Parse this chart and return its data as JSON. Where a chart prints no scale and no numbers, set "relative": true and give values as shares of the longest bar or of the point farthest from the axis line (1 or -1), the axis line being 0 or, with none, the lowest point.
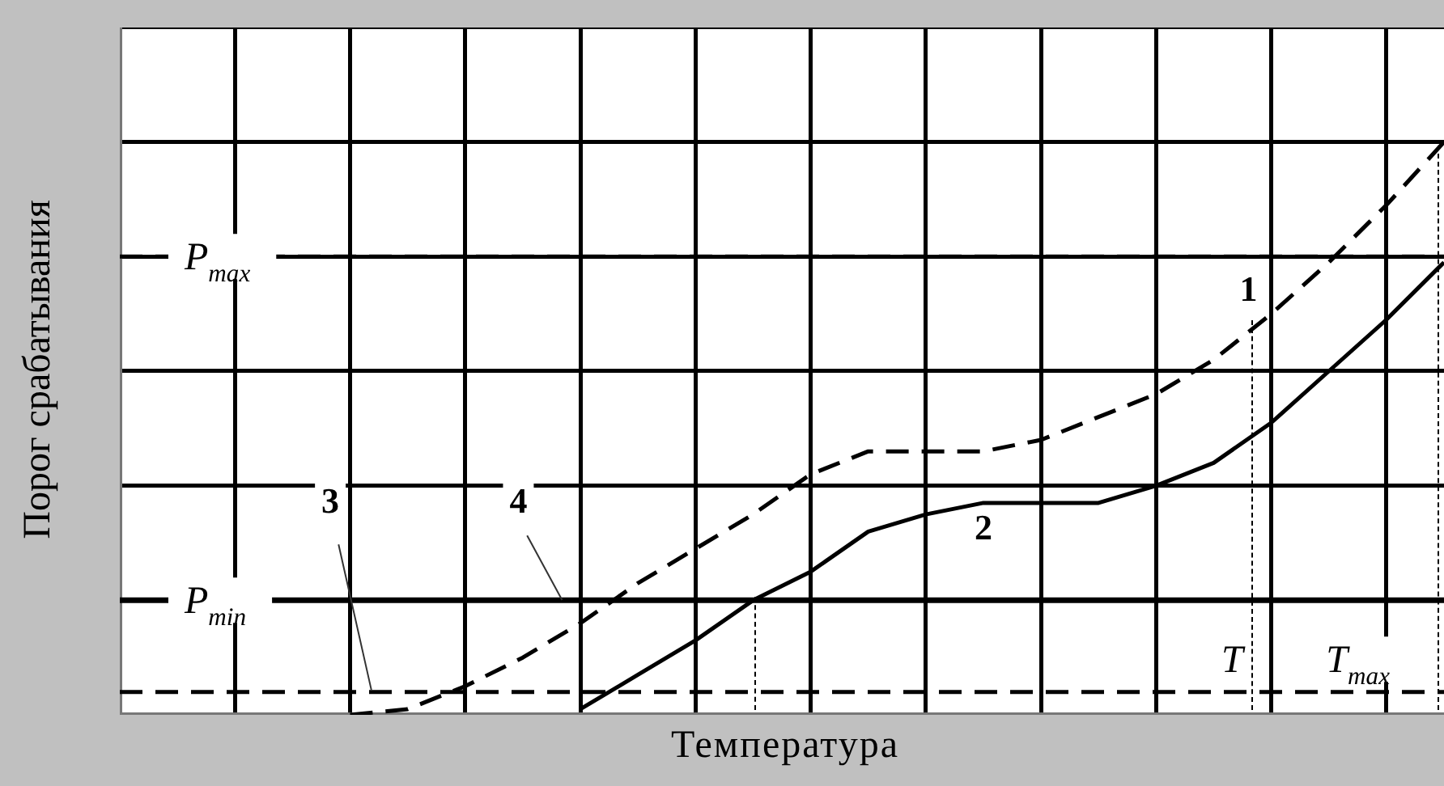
{
  "chart_data": {
    "type": "line",
    "relative": true,
    "xlabel": "Температура",
    "ylabel": "Порог срабатывания",
    "categories": [
      null,
      null,
      null,
      null,
      null,
      null,
      null,
      null,
      null,
      null,
      null,
      null,
      null,
      null,
      null,
      null,
      null,
      null,
      null,
      null,
      null,
      null,
      null,
      null
    ],
    "grid": true,
    "marker": "none",
    "series": [
      {
        "name": "1",
        "color": "#000000",
        "line_style": "dashed",
        "values": [
          null,
          null,
          null,
          null,
          0,
          0.01,
          0.05,
          0.1,
          0.16,
          0.23,
          0.29,
          0.35,
          0.42,
          0.46,
          0.46,
          0.46,
          0.48,
          0.52,
          0.56,
          0.62,
          0.7,
          0.79,
          0.89,
          1.0
        ]
      },
      {
        "name": "2",
        "color": "#000000",
        "line_style": "solid",
        "values": [
          null,
          null,
          null,
          null,
          null,
          null,
          null,
          null,
          0.01,
          0.07,
          0.13,
          0.2,
          0.25,
          0.32,
          0.35,
          0.37,
          0.37,
          0.37,
          0.4,
          0.44,
          0.51,
          0.6,
          0.69,
          0.79
        ]
      }
    ],
    "ref_lines": [
      {
        "axis": "y",
        "value": 0.8,
        "label": "P$_{max}$",
        "color": "#000000",
        "line_style": "dashed"
      },
      {
        "axis": "y",
        "value": 0.2,
        "label": "P$_{min}$",
        "color": "#000000",
        "line_style": "solid"
      },
      {
        "axis": "y",
        "value": 0.04,
        "label": null,
        "color": "#000000",
        "line_style": "dashed"
      }
    ],
    "annotations": [
      "3",
      "4",
      "T",
      "T$_{max}$"
    ]
  }
}
